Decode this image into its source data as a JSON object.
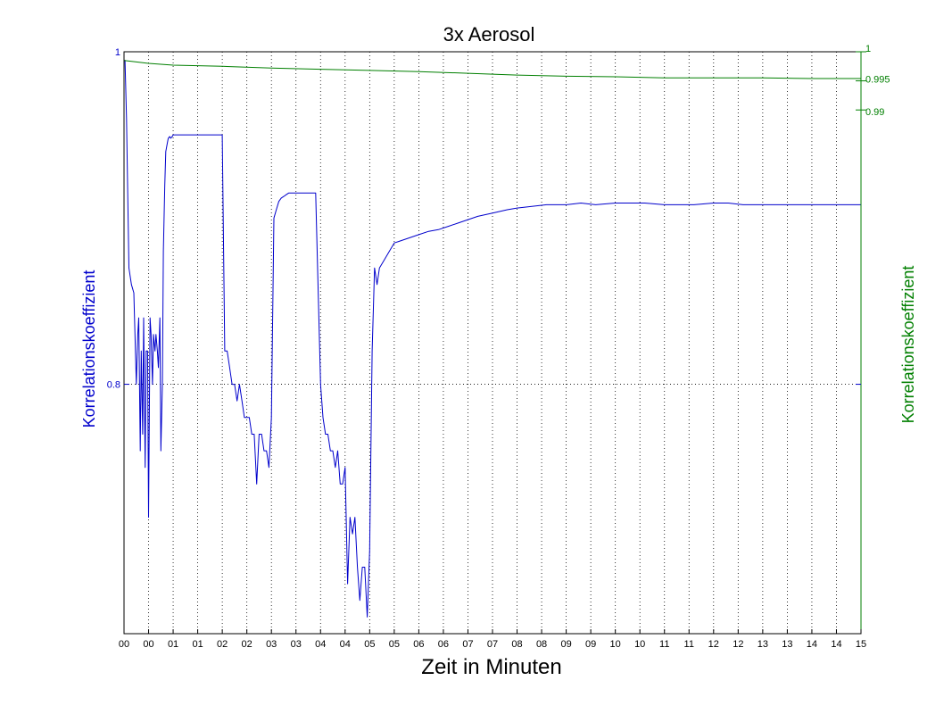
{
  "chart_data": {
    "type": "line",
    "title": "3x Aerosol",
    "xlabel": "Zeit in Minuten",
    "ylabel_left": "Korrelationskoeffizient",
    "ylabel_right": "Korrelationskoeffizient",
    "colors": {
      "left": "#0000cc",
      "right": "#007f00",
      "grid": "#000000"
    },
    "grid": "x and y dotted",
    "x_tick_labels": [
      "00",
      "00",
      "01",
      "01",
      "02",
      "02",
      "03",
      "03",
      "04",
      "04",
      "05",
      "05",
      "06",
      "06",
      "07",
      "07",
      "08",
      "08",
      "09",
      "09",
      "10",
      "10",
      "11",
      "11",
      "12",
      "12",
      "13",
      "13",
      "14",
      "14",
      "15"
    ],
    "x_tick_values": [
      0,
      0.5,
      1,
      1.5,
      2,
      2.5,
      3,
      3.5,
      4,
      4.5,
      5,
      5.5,
      6,
      6.5,
      7,
      7.5,
      8,
      8.5,
      9,
      9.5,
      10,
      10.5,
      11,
      11.5,
      12,
      12.5,
      13,
      13.5,
      14,
      14.5,
      15
    ],
    "xlim": [
      0,
      15
    ],
    "ylim_left": [
      0.65,
      1.0
    ],
    "ylim_right": [
      0.9,
      1.0
    ],
    "yticks_left": [
      {
        "value": 0.8,
        "label": "0.8"
      },
      {
        "value": 1.0,
        "label": "1"
      }
    ],
    "yticks_right": [
      {
        "value": 0.99,
        "label": "0.99"
      },
      {
        "value": 0.995,
        "label": "0.995"
      },
      {
        "value": 1.0,
        "label": "1"
      }
    ],
    "series": [
      {
        "axis": "left",
        "x": [
          0.02,
          0.05,
          0.1,
          0.15,
          0.2,
          0.25,
          0.28,
          0.3,
          0.33,
          0.35,
          0.38,
          0.4,
          0.43,
          0.45,
          0.48,
          0.5,
          0.53,
          0.55,
          0.58,
          0.6,
          0.63,
          0.65,
          0.68,
          0.7,
          0.73,
          0.75,
          0.78,
          0.8,
          0.83,
          0.85,
          0.88,
          0.9,
          0.93,
          0.95,
          0.98,
          1.0,
          1.02,
          1.05,
          1.08,
          1.1,
          1.15,
          1.2,
          1.3,
          1.4,
          1.5,
          1.6,
          1.8,
          2.0,
          2.05,
          2.1,
          2.15,
          2.2,
          2.25,
          2.3,
          2.35,
          2.4,
          2.45,
          2.5,
          2.55,
          2.6,
          2.65,
          2.7,
          2.75,
          2.8,
          2.85,
          2.9,
          2.95,
          3.0,
          3.05,
          3.1,
          3.15,
          3.2,
          3.25,
          3.3,
          3.35,
          3.4,
          3.5,
          3.6,
          3.7,
          3.8,
          3.9,
          4.0,
          4.05,
          4.1,
          4.15,
          4.2,
          4.25,
          4.3,
          4.35,
          4.4,
          4.45,
          4.5,
          4.55,
          4.6,
          4.65,
          4.7,
          4.75,
          4.8,
          4.85,
          4.9,
          4.95,
          5.0,
          5.05,
          5.1,
          5.15,
          5.2,
          5.3,
          5.4,
          5.5,
          5.6,
          5.7,
          5.8,
          6.0,
          6.2,
          6.4,
          6.6,
          6.8,
          7.0,
          7.2,
          7.5,
          7.8,
          8.0,
          8.3,
          8.6,
          9.0,
          9.3,
          9.6,
          10.0,
          10.3,
          10.6,
          11.0,
          11.3,
          11.6,
          12.0,
          12.3,
          12.6,
          13.0,
          13.3,
          13.6,
          14.0,
          14.3,
          14.6,
          15.0
        ],
        "y": [
          0.995,
          0.96,
          0.87,
          0.86,
          0.855,
          0.8,
          0.83,
          0.84,
          0.76,
          0.82,
          0.77,
          0.84,
          0.75,
          0.82,
          0.82,
          0.72,
          0.84,
          0.83,
          0.8,
          0.83,
          0.82,
          0.83,
          0.82,
          0.81,
          0.84,
          0.76,
          0.8,
          0.88,
          0.92,
          0.94,
          0.945,
          0.948,
          0.949,
          0.948,
          0.949,
          0.95,
          0.95,
          0.95,
          0.95,
          0.95,
          0.95,
          0.95,
          0.95,
          0.95,
          0.95,
          0.95,
          0.95,
          0.95,
          0.82,
          0.82,
          0.81,
          0.8,
          0.8,
          0.79,
          0.8,
          0.79,
          0.78,
          0.78,
          0.78,
          0.77,
          0.77,
          0.74,
          0.77,
          0.77,
          0.76,
          0.76,
          0.75,
          0.78,
          0.9,
          0.905,
          0.91,
          0.912,
          0.913,
          0.914,
          0.915,
          0.915,
          0.915,
          0.915,
          0.915,
          0.915,
          0.915,
          0.8,
          0.78,
          0.77,
          0.77,
          0.76,
          0.76,
          0.75,
          0.76,
          0.74,
          0.74,
          0.75,
          0.68,
          0.72,
          0.71,
          0.72,
          0.69,
          0.67,
          0.69,
          0.69,
          0.66,
          0.7,
          0.82,
          0.87,
          0.86,
          0.87,
          0.875,
          0.88,
          0.885,
          0.886,
          0.887,
          0.888,
          0.89,
          0.892,
          0.893,
          0.895,
          0.897,
          0.899,
          0.901,
          0.903,
          0.905,
          0.906,
          0.907,
          0.908,
          0.908,
          0.909,
          0.908,
          0.909,
          0.909,
          0.909,
          0.908,
          0.908,
          0.908,
          0.909,
          0.909,
          0.908,
          0.908,
          0.908,
          0.908,
          0.908,
          0.908,
          0.908,
          0.908
        ]
      },
      {
        "axis": "right",
        "x": [
          0.0,
          0.5,
          1.0,
          2.0,
          3.0,
          4.0,
          5.0,
          6.0,
          7.0,
          8.0,
          9.0,
          10.0,
          11.0,
          12.0,
          13.0,
          14.0,
          15.0
        ],
        "y": [
          0.9985,
          0.998,
          0.9977,
          0.9975,
          0.9972,
          0.997,
          0.9968,
          0.9966,
          0.9963,
          0.996,
          0.9958,
          0.9957,
          0.9955,
          0.9955,
          0.9955,
          0.9954,
          0.9954
        ]
      }
    ]
  }
}
